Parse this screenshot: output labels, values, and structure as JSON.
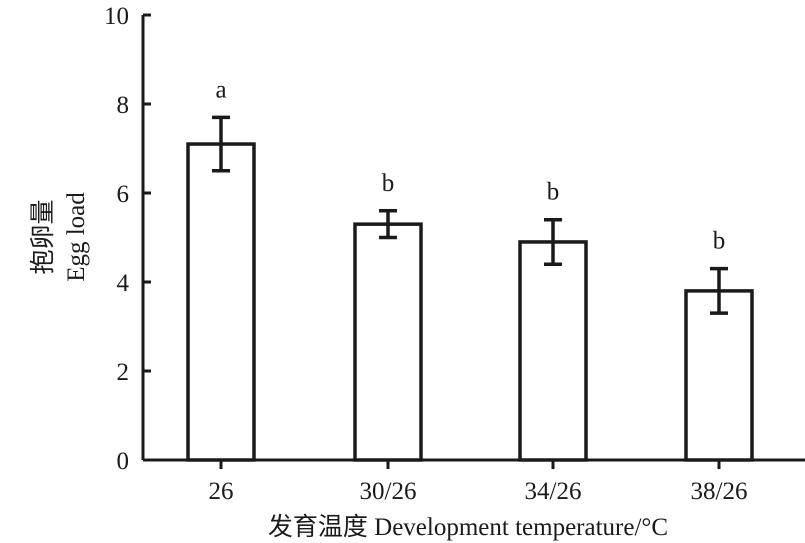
{
  "chart_data": {
    "type": "bar",
    "categories": [
      "26",
      "30/26",
      "34/26",
      "38/26"
    ],
    "values": [
      7.1,
      5.3,
      4.9,
      3.8
    ],
    "error": [
      0.6,
      0.3,
      0.5,
      0.5
    ],
    "significance_labels": [
      "a",
      "b",
      "b",
      "b"
    ],
    "ylim": [
      0,
      10
    ],
    "yticks": [
      0,
      2,
      4,
      6,
      8,
      10
    ],
    "ylabel_cn": "抱卵量",
    "ylabel_en": "Egg load",
    "xlabel": "发育温度  Development temperature/°C",
    "grid": false,
    "legend": "none",
    "colors": {
      "bar_fill": "#ffffff",
      "bar_stroke": "#1a1a1a",
      "axis": "#1a1a1a",
      "text": "#1a1a1a"
    }
  }
}
